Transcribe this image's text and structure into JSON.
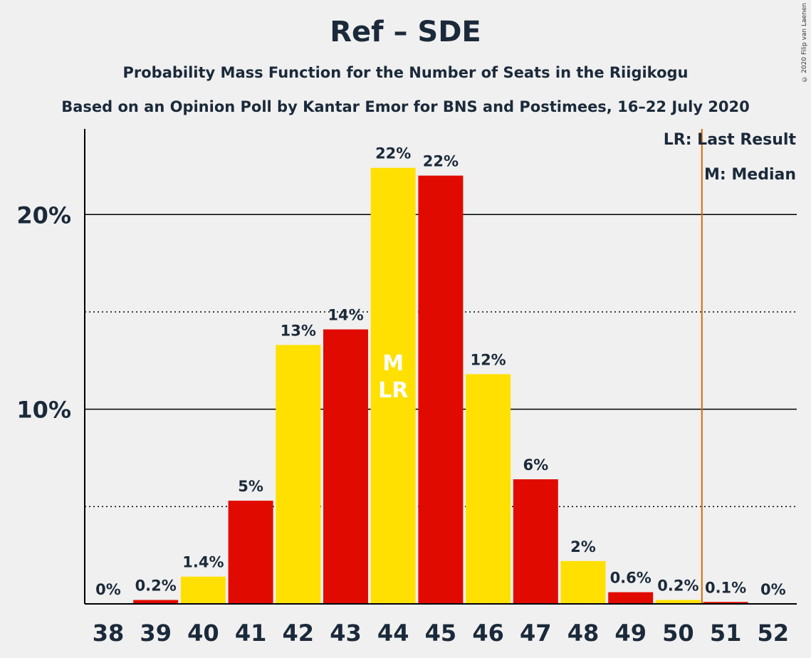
{
  "header": {
    "title": "Ref – SDE",
    "subtitle": "Probability Mass Function for the Number of Seats in the Riigikogu",
    "subtitle2": "Based on an Opinion Poll by Kantar Emor for BNS and Postimees, 16–22 July 2020",
    "copyright": "© 2020 Filip van Laenen"
  },
  "legend": {
    "last_result": "LR: Last Result",
    "median": "M: Median"
  },
  "colors": {
    "yellow": "#FFE000",
    "red": "#E10A00",
    "last_result_line": "#D96B00",
    "text": "#1b2a3a"
  },
  "chart_data": {
    "type": "bar",
    "categories": [
      "38",
      "39",
      "40",
      "41",
      "42",
      "43",
      "44",
      "45",
      "46",
      "47",
      "48",
      "49",
      "50",
      "51",
      "52"
    ],
    "values": [
      0,
      0.2,
      1.4,
      5.3,
      13.3,
      14.1,
      22.4,
      22.0,
      11.8,
      6.4,
      2.2,
      0.6,
      0.2,
      0.1,
      0
    ],
    "data_labels": [
      "0%",
      "0.2%",
      "1.4%",
      "5%",
      "13%",
      "14%",
      "22%",
      "22%",
      "12%",
      "6%",
      "2%",
      "0.6%",
      "0.2%",
      "0.1%",
      "0%"
    ],
    "colors": [
      "yellow",
      "red",
      "yellow",
      "red",
      "yellow",
      "red",
      "yellow",
      "red",
      "yellow",
      "red",
      "yellow",
      "red",
      "yellow",
      "red",
      "yellow"
    ],
    "ylim": [
      0,
      24.4
    ],
    "yticks": [
      {
        "value": 10,
        "label": "10%"
      },
      {
        "value": 20,
        "label": "20%"
      }
    ],
    "minor_gridlines": [
      5,
      15
    ],
    "median_seat": "44",
    "last_result_seat": "44",
    "median_marker": "M",
    "last_result_marker": "LR",
    "majority_line_after_seat": "50"
  }
}
